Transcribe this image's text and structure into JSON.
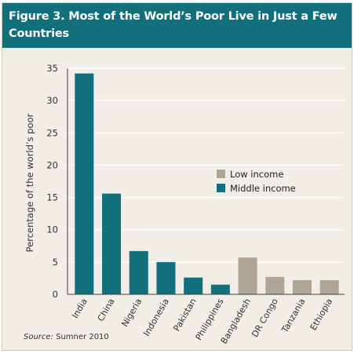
{
  "figure": {
    "title": "Figure 3. Most of the World’s Poor Live in Just a Few Countries",
    "source_label": "Source:",
    "source_text": "Sumner 2010"
  },
  "colors": {
    "header": "#12707d",
    "middle_income": "#12707d",
    "low_income": "#aea596",
    "background": "#f1ede7",
    "gridline": "#ffffff",
    "axis": "#444444"
  },
  "chart_data": {
    "type": "bar",
    "title": "Figure 3. Most of the World’s Poor Live in Just a Few Countries",
    "ylabel": "Percentage of the world’s poor",
    "xlabel": "",
    "ylim": [
      0,
      35
    ],
    "yticks": [
      0,
      5,
      10,
      15,
      20,
      25,
      30,
      35
    ],
    "grid": true,
    "legend_position": "center-right",
    "categories": [
      "India",
      "China",
      "Nigeria",
      "Indonesia",
      "Pakistan",
      "Philippines",
      "Bangladesh",
      "DR Congo",
      "Tanzania",
      "Ethiopia"
    ],
    "values": [
      34.2,
      15.6,
      6.7,
      5.0,
      2.6,
      1.5,
      5.7,
      2.7,
      2.2,
      2.2
    ],
    "groups": [
      "Middle income",
      "Middle income",
      "Middle income",
      "Middle income",
      "Middle income",
      "Middle income",
      "Low income",
      "Low income",
      "Low income",
      "Low income"
    ],
    "legend": [
      "Low income",
      "Middle income"
    ]
  }
}
